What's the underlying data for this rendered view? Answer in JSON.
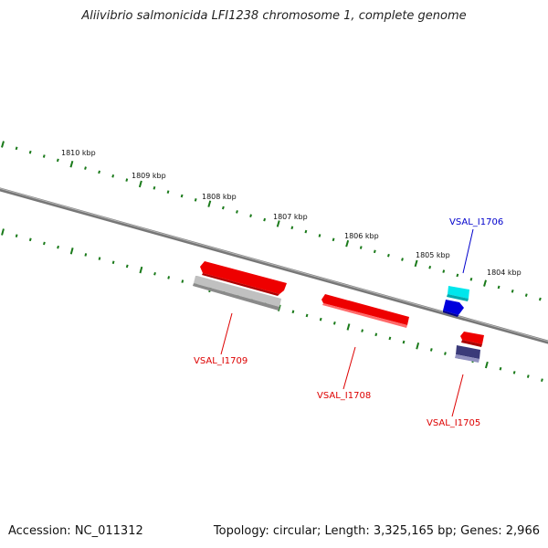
{
  "title": "Aliivibrio salmonicida LFI1238 chromosome 1, complete genome",
  "footer": {
    "accession": "Accession: NC_011312",
    "summary": "Topology: circular; Length: 3,325,165 bp; Genes: 2,966"
  },
  "colors": {
    "backbone": "#7a7a7a",
    "ticks": "#1a7a1a",
    "gene_red": "#ee0000",
    "gene_gray": "#b8b8b8",
    "gene_cyan": "#00e0e6",
    "gene_blue": "#0000dd",
    "gene_navy": "#3a3a7a",
    "label_red": "#dd0000",
    "label_blue": "#0000cc"
  },
  "scale_labels": [
    "1810 kbp",
    "1809 kbp",
    "1808 kbp",
    "1807 kbp",
    "1806 kbp",
    "1805 kbp",
    "1804 kbp"
  ],
  "genes": [
    {
      "label": "VSAL_I1709",
      "color": "gene_red"
    },
    {
      "label": "",
      "color": "gene_gray"
    },
    {
      "label": "VSAL_I1708",
      "color": "gene_red"
    },
    {
      "label": "VSAL_I1706",
      "color": "gene_cyan"
    },
    {
      "label": "",
      "color": "gene_blue"
    },
    {
      "label": "VSAL_I1705",
      "color": "gene_red"
    },
    {
      "label": "",
      "color": "gene_navy"
    }
  ]
}
